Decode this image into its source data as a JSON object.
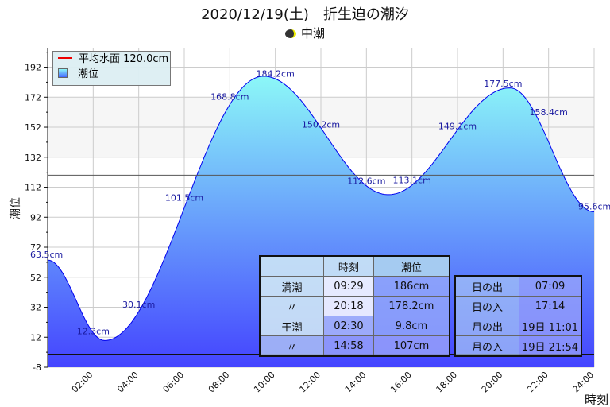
{
  "title": "2020/12/19(土)　折生迫の潮汐",
  "moon_phase": "中潮",
  "legend": {
    "mean_label": "平均水面 120.0cm",
    "tide_label": "潮位"
  },
  "tide_table": {
    "headers": [
      "",
      "時刻",
      "潮位"
    ],
    "rows": [
      [
        "満潮",
        "09:29",
        "186cm"
      ],
      [
        "〃",
        "20:18",
        "178.2cm"
      ],
      [
        "干潮",
        "02:30",
        "9.8cm"
      ],
      [
        "〃",
        "14:58",
        "107cm"
      ]
    ]
  },
  "sun_moon_table": {
    "rows": [
      [
        "日の出",
        "07:09"
      ],
      [
        "日の入",
        "17:14"
      ],
      [
        "月の出",
        "19日 11:01"
      ],
      [
        "月の入",
        "19日 21:54"
      ]
    ]
  },
  "chart_data": {
    "type": "area",
    "xlabel": "時刻",
    "ylabel": "潮位",
    "xlim": [
      0,
      24
    ],
    "ylim": [
      -8,
      205
    ],
    "xticks": [
      "02:00",
      "04:00",
      "06:00",
      "08:00",
      "10:00",
      "12:00",
      "14:00",
      "16:00",
      "18:00",
      "20:00",
      "22:00",
      "24:00"
    ],
    "yticks": [
      -8,
      12,
      32,
      52,
      72,
      92,
      112,
      132,
      152,
      172,
      192
    ],
    "mean_level": 120.0,
    "extrema": [
      [
        0,
        63.5
      ],
      [
        2.5,
        9.8
      ],
      [
        9.483,
        186
      ],
      [
        14.967,
        107
      ],
      [
        20.3,
        178.2
      ],
      [
        24,
        95.6
      ]
    ],
    "point_labels": [
      [
        0,
        63.5,
        "63.5cm"
      ],
      [
        2,
        12.3,
        "12.3cm"
      ],
      [
        4,
        30.1,
        "30.1cm"
      ],
      [
        6,
        101.5,
        "101.5cm"
      ],
      [
        8,
        168.8,
        "168.8cm"
      ],
      [
        10,
        184.2,
        "184.2cm"
      ],
      [
        12,
        150.2,
        "150.2cm"
      ],
      [
        14,
        112.6,
        "112.6cm"
      ],
      [
        16,
        113.1,
        "113.1cm"
      ],
      [
        18,
        149.1,
        "149.1cm"
      ],
      [
        20,
        177.5,
        "177.5cm"
      ],
      [
        22,
        158.4,
        "158.4cm"
      ],
      [
        24,
        95.6,
        "95.6cm"
      ]
    ],
    "colors": {
      "fill_top": "#8cf8f8",
      "fill_bottom": "#4444ff",
      "line": "#0000ee",
      "mean": "#ee0000",
      "label": "#1a1aa0"
    }
  }
}
